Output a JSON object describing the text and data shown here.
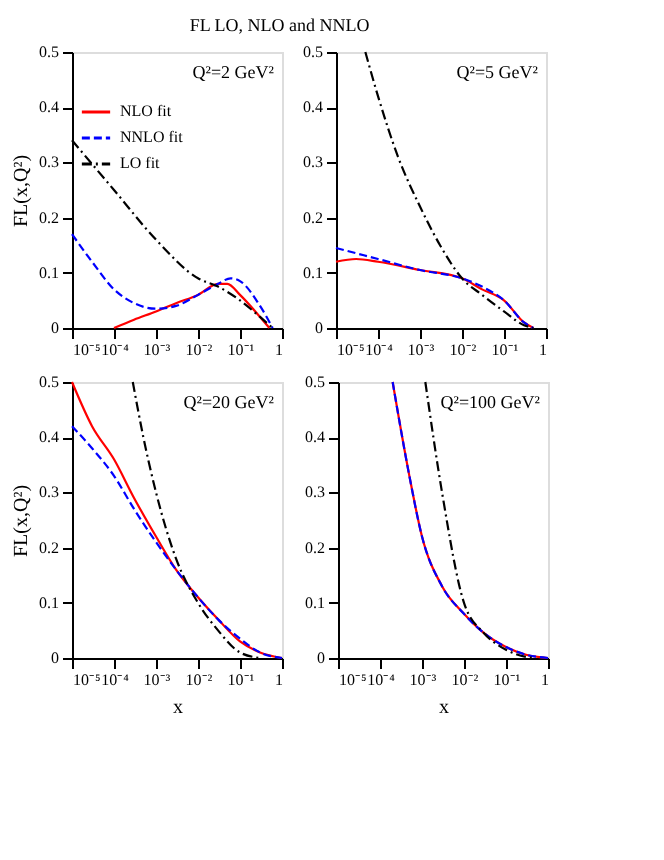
{
  "chart_data": [
    {
      "type": "line",
      "title": "FL LO, NLO and NNLO",
      "ylabel": "FL(x,Q²)",
      "annotations": [
        "Q²=2 GeV²"
      ],
      "log": "x",
      "xlim": [
        1e-05,
        1
      ],
      "ylim": [
        0,
        0.5
      ],
      "xticks": [
        {
          "value": 1e-05,
          "label": "10⁻⁵"
        },
        {
          "value": 0.0001,
          "label": "10⁻⁴"
        },
        {
          "value": 0.001,
          "label": "10⁻³"
        },
        {
          "value": 0.01,
          "label": "10⁻²"
        },
        {
          "value": 0.1,
          "label": "10⁻¹"
        },
        1
      ],
      "yticks": [
        0,
        0.1,
        0.2,
        0.3,
        0.4,
        0.5
      ],
      "legend": "top left",
      "grid": false,
      "series": [
        {
          "name": "NLO fit",
          "color": "#ff0000",
          "line_style": "solid",
          "x": [
            0.0001,
            0.0003,
            0.001,
            0.003,
            0.01,
            0.03,
            0.05,
            0.1,
            0.3,
            0.5
          ],
          "values": [
            0,
            0.015,
            0.03,
            0.045,
            0.06,
            0.08,
            0.08,
            0.06,
            0.02,
            0
          ]
        },
        {
          "name": "NNLO fit",
          "color": "#0000ff",
          "line_style": "dashed",
          "x": [
            1e-05,
            3e-05,
            0.0001,
            0.0003,
            0.001,
            0.003,
            0.01,
            0.03,
            0.06,
            0.1,
            0.3,
            0.6
          ],
          "values": [
            0.17,
            0.12,
            0.07,
            0.045,
            0.035,
            0.04,
            0.06,
            0.08,
            0.09,
            0.085,
            0.04,
            0
          ]
        },
        {
          "name": "LO fit",
          "color": "#000000",
          "line_style": "dotted",
          "x": [
            1e-05,
            0.0001,
            0.001,
            0.01,
            0.03,
            0.1,
            0.3,
            0.6
          ],
          "values": [
            0.34,
            0.25,
            0.16,
            0.09,
            0.075,
            0.05,
            0.02,
            0
          ]
        }
      ]
    },
    {
      "type": "line",
      "annotations": [
        "Q²=5 GeV²"
      ],
      "log": "x",
      "xlim": [
        1e-05,
        1
      ],
      "ylim": [
        0,
        0.5
      ],
      "xticks": [
        {
          "value": 1e-05,
          "label": "10⁻⁵"
        },
        {
          "value": 0.0001,
          "label": "10⁻⁴"
        },
        {
          "value": 0.001,
          "label": "10⁻³"
        },
        {
          "value": 0.01,
          "label": "10⁻²"
        },
        {
          "value": 0.1,
          "label": "10⁻¹"
        },
        1
      ],
      "yticks": [
        0,
        0.1,
        0.2,
        0.3,
        0.4,
        0.5
      ],
      "grid": false,
      "series": [
        {
          "color": "#ff0000",
          "line_style": "solid",
          "x": [
            1e-05,
            3e-05,
            0.0001,
            0.001,
            0.01,
            0.03,
            0.1,
            0.3,
            0.5
          ],
          "values": [
            0.12,
            0.125,
            0.12,
            0.105,
            0.09,
            0.07,
            0.05,
            0.01,
            0
          ]
        },
        {
          "color": "#0000ff",
          "line_style": "dashed",
          "x": [
            1e-05,
            0.0001,
            0.001,
            0.01,
            0.03,
            0.1,
            0.3,
            0.5
          ],
          "values": [
            0.145,
            0.125,
            0.105,
            0.09,
            0.075,
            0.05,
            0.01,
            0
          ]
        },
        {
          "color": "#000000",
          "line_style": "dotted",
          "x": [
            5e-05,
            0.0001,
            0.0003,
            0.001,
            0.003,
            0.01,
            0.03,
            0.1,
            0.3,
            0.5
          ],
          "values": [
            0.5,
            0.42,
            0.31,
            0.22,
            0.15,
            0.09,
            0.06,
            0.03,
            0.005,
            0
          ]
        }
      ]
    },
    {
      "type": "line",
      "xlabel": "x",
      "ylabel": "FL(x,Q²)",
      "annotations": [
        "Q²=20 GeV²"
      ],
      "log": "x",
      "xlim": [
        1e-05,
        1
      ],
      "ylim": [
        0,
        0.5
      ],
      "xticks": [
        {
          "value": 1e-05,
          "label": "10⁻⁵"
        },
        {
          "value": 0.0001,
          "label": "10⁻⁴"
        },
        {
          "value": 0.001,
          "label": "10⁻³"
        },
        {
          "value": 0.01,
          "label": "10⁻²"
        },
        {
          "value": 0.1,
          "label": "10⁻¹"
        },
        1
      ],
      "yticks": [
        0,
        0.1,
        0.2,
        0.3,
        0.4,
        0.5
      ],
      "grid": false,
      "series": [
        {
          "color": "#ff0000",
          "line_style": "solid",
          "x": [
            1e-05,
            3e-05,
            0.0001,
            0.0003,
            0.001,
            0.003,
            0.01,
            0.03,
            0.1,
            0.3,
            1
          ],
          "values": [
            0.5,
            0.42,
            0.36,
            0.29,
            0.22,
            0.16,
            0.11,
            0.07,
            0.03,
            0.01,
            0
          ]
        },
        {
          "color": "#0000ff",
          "line_style": "dashed",
          "x": [
            1e-05,
            3e-05,
            0.0001,
            0.0003,
            0.001,
            0.003,
            0.01,
            0.03,
            0.1,
            0.3,
            1
          ],
          "values": [
            0.42,
            0.38,
            0.33,
            0.27,
            0.21,
            0.16,
            0.11,
            0.07,
            0.035,
            0.01,
            0
          ]
        },
        {
          "color": "#000000",
          "line_style": "dotted",
          "x": [
            0.00028,
            0.0005,
            0.001,
            0.003,
            0.01,
            0.03,
            0.1,
            0.3
          ],
          "values": [
            0.5,
            0.4,
            0.3,
            0.18,
            0.1,
            0.05,
            0.01,
            0
          ]
        }
      ]
    },
    {
      "type": "line",
      "xlabel": "x",
      "annotations": [
        "Q²=100 GeV²"
      ],
      "log": "x",
      "xlim": [
        1e-05,
        1
      ],
      "ylim": [
        0,
        0.5
      ],
      "xticks": [
        {
          "value": 1e-05,
          "label": "10⁻⁵"
        },
        {
          "value": 0.0001,
          "label": "10⁻⁴"
        },
        {
          "value": 0.001,
          "label": "10⁻³"
        },
        {
          "value": 0.01,
          "label": "10⁻²"
        },
        {
          "value": 0.1,
          "label": "10⁻¹"
        },
        1
      ],
      "yticks": [
        0,
        0.1,
        0.2,
        0.3,
        0.4,
        0.5
      ],
      "grid": false,
      "series": [
        {
          "color": "#ff0000",
          "line_style": "solid",
          "x": [
            0.0002,
            0.0005,
            0.001,
            0.003,
            0.01,
            0.03,
            0.1,
            0.3,
            1
          ],
          "values": [
            0.5,
            0.33,
            0.22,
            0.13,
            0.08,
            0.045,
            0.02,
            0.006,
            0
          ]
        },
        {
          "color": "#0000ff",
          "line_style": "dashed",
          "x": [
            0.0002,
            0.0005,
            0.001,
            0.003,
            0.01,
            0.03,
            0.1,
            0.3,
            1
          ],
          "values": [
            0.5,
            0.33,
            0.22,
            0.13,
            0.08,
            0.045,
            0.02,
            0.006,
            0
          ]
        },
        {
          "color": "#000000",
          "line_style": "dotted",
          "x": [
            0.0012,
            0.003,
            0.01,
            0.03,
            0.1,
            0.3,
            0.5
          ],
          "values": [
            0.5,
            0.3,
            0.1,
            0.045,
            0.015,
            0.002,
            0
          ]
        }
      ]
    }
  ]
}
